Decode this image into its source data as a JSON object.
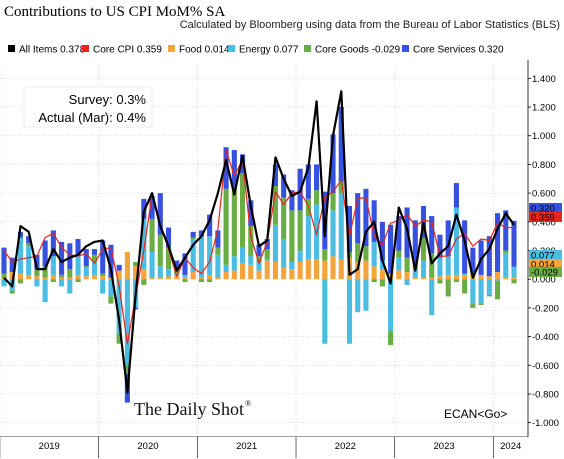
{
  "header": {
    "title": "Contributions to US CPI MoM% SA",
    "subtitle": "Calculated by Bloomberg using data from the Bureau of Labor Statistics (BLS)"
  },
  "annotations": {
    "survey": "Survey:  0.3%",
    "actual": "Actual (Mar):  0.4%",
    "watermark": "The Daily Shot",
    "watermark_mark": "®",
    "command": "ECAN<Go>"
  },
  "legend": [
    {
      "label": "All Items",
      "value": "0.378",
      "color": "#000000"
    },
    {
      "label": "Core CPI",
      "value": "0.359",
      "color": "#e8251b"
    },
    {
      "label": "Food",
      "value": "0.014",
      "color": "#f5a43a"
    },
    {
      "label": "Energy",
      "value": "0.077",
      "color": "#4bbde3"
    },
    {
      "label": "Core Goods",
      "value": "-0.029",
      "color": "#6aad45"
    },
    {
      "label": "Core Services",
      "value": "0.320",
      "color": "#3650e0"
    }
  ],
  "last_value_tags": [
    {
      "text": "0.320",
      "color": "#3650e0",
      "text_color": "#ffffff",
      "value": 0.32
    },
    {
      "text": "0.359",
      "color": "#e8251b",
      "text_color": "#ffffff",
      "value": 0.359
    },
    {
      "text": "0.077",
      "color": "#4bbde3",
      "text_color": "#000000",
      "value": 0.077
    },
    {
      "text": "0.014",
      "color": "#f5a43a",
      "text_color": "#000000",
      "value": 0.014
    },
    {
      "text": "-0.029",
      "color": "#6aad45",
      "text_color": "#000000",
      "value": -0.029
    }
  ],
  "chart_data": {
    "type": "bar",
    "stacked": true,
    "title": "Contributions to US CPI MoM% SA",
    "subtitle": "Calculated by Bloomberg using data from the Bureau of Labor Statistics (BLS)",
    "ylim": [
      -1.1,
      1.5
    ],
    "y_ticks": [
      -1.0,
      -0.8,
      -0.6,
      -0.4,
      -0.2,
      0.0,
      0.2,
      0.4,
      0.6,
      0.8,
      1.0,
      1.2,
      1.4
    ],
    "y_tick_labels": [
      "-1.000",
      "-0.800",
      "-0.600",
      "-0.400",
      "-0.200",
      "0.000",
      "0.200",
      "0.400",
      "0.600",
      "0.800",
      "1.000",
      "1.200",
      "1.400"
    ],
    "x_tick_labels": [
      "2019",
      "2020",
      "2021",
      "2022",
      "2023",
      "2024"
    ],
    "grid": true,
    "legend_position": "top",
    "categories": [
      "2019-01",
      "2019-02",
      "2019-03",
      "2019-04",
      "2019-05",
      "2019-06",
      "2019-07",
      "2019-08",
      "2019-09",
      "2019-10",
      "2019-11",
      "2019-12",
      "2020-01",
      "2020-02",
      "2020-03",
      "2020-04",
      "2020-05",
      "2020-06",
      "2020-07",
      "2020-08",
      "2020-09",
      "2020-10",
      "2020-11",
      "2020-12",
      "2021-01",
      "2021-02",
      "2021-03",
      "2021-04",
      "2021-05",
      "2021-06",
      "2021-07",
      "2021-08",
      "2021-09",
      "2021-10",
      "2021-11",
      "2021-12",
      "2022-01",
      "2022-02",
      "2022-03",
      "2022-04",
      "2022-05",
      "2022-06",
      "2022-07",
      "2022-08",
      "2022-09",
      "2022-10",
      "2022-11",
      "2022-12",
      "2023-01",
      "2023-02",
      "2023-03",
      "2023-04",
      "2023-05",
      "2023-06",
      "2023-07",
      "2023-08",
      "2023-09",
      "2023-10",
      "2023-11",
      "2023-12",
      "2024-01",
      "2024-02",
      "2024-03"
    ],
    "series": [
      {
        "name": "Food",
        "color": "#f5a43a",
        "values": [
          0.01,
          0.05,
          0.04,
          0.03,
          0.02,
          0.01,
          0.03,
          0.01,
          0.01,
          0.03,
          0.02,
          0.03,
          0.02,
          0.01,
          0.06,
          0.19,
          0.09,
          0.07,
          0.01,
          0.01,
          0.02,
          0.03,
          0.01,
          0.05,
          0.01,
          0.03,
          0.01,
          0.05,
          0.06,
          0.11,
          0.1,
          0.06,
          0.13,
          0.12,
          0.08,
          0.07,
          0.12,
          0.14,
          0.14,
          0.13,
          0.16,
          0.14,
          0.15,
          0.12,
          0.13,
          0.09,
          0.07,
          0.04,
          0.06,
          0.05,
          0.01,
          0.01,
          0.01,
          0.02,
          0.03,
          0.03,
          0.03,
          0.04,
          0.03,
          0.02,
          0.05,
          0.01,
          0.01
        ]
      },
      {
        "name": "Energy",
        "color": "#4bbde3",
        "values": [
          -0.05,
          -0.08,
          0.25,
          0.2,
          -0.05,
          -0.16,
          0.13,
          -0.05,
          -0.1,
          0.13,
          0.06,
          0.09,
          -0.1,
          -0.12,
          -0.38,
          -0.6,
          -0.2,
          0.35,
          0.18,
          0.08,
          0.05,
          0.01,
          0.02,
          0.23,
          0.29,
          0.27,
          0.16,
          0.05,
          0.1,
          0.11,
          0.06,
          0.06,
          0.01,
          0.26,
          0.2,
          0.05,
          0.08,
          0.3,
          0.38,
          -0.45,
          0.32,
          0.46,
          -0.45,
          -0.23,
          -0.22,
          0.17,
          0.06,
          -0.36,
          0.09,
          -0.04,
          0.06,
          0.12,
          -0.25,
          0.13,
          0.13,
          0.47,
          0.01,
          -0.17,
          -0.17,
          -0.11,
          -0.01,
          0.17,
          0.077
        ]
      },
      {
        "name": "Core Goods",
        "color": "#6aad45",
        "values": [
          0.03,
          -0.02,
          -0.03,
          0.02,
          0.05,
          0.08,
          -0.02,
          0.02,
          0.06,
          -0.02,
          0.01,
          0.05,
          0.02,
          -0.05,
          -0.07,
          -0.06,
          0.03,
          -0.04,
          0.23,
          0.22,
          0.15,
          0.03,
          -0.02,
          0.01,
          -0.02,
          -0.02,
          0.05,
          0.53,
          0.48,
          0.52,
          0.21,
          0.04,
          0.07,
          0.27,
          0.29,
          0.36,
          0.28,
          0.12,
          0.1,
          0.08,
          0.12,
          0.08,
          0.04,
          0.13,
          0.1,
          -0.02,
          -0.05,
          -0.1,
          0.05,
          0.1,
          0.04,
          0.16,
          0.17,
          -0.03,
          -0.12,
          -0.02,
          -0.1,
          -0.03,
          -0.01,
          -0.01,
          -0.13,
          0.02,
          -0.029
        ]
      },
      {
        "name": "Core Services",
        "color": "#3650e0",
        "values": [
          0.18,
          0.1,
          0.04,
          0.05,
          0.1,
          0.18,
          0.18,
          0.23,
          0.18,
          0.12,
          0.12,
          0.04,
          0.23,
          0.23,
          0.04,
          -0.2,
          -0.01,
          0.14,
          0.16,
          0.29,
          0.14,
          0.06,
          0.15,
          0.04,
          0.04,
          0.15,
          0.12,
          0.29,
          0.26,
          0.13,
          0.18,
          0.08,
          0.07,
          0.15,
          0.16,
          0.14,
          0.29,
          0.24,
          0.18,
          0.4,
          0.41,
          0.52,
          0.32,
          0.35,
          0.4,
          0.29,
          0.27,
          0.34,
          0.24,
          0.35,
          0.3,
          0.22,
          0.26,
          0.16,
          0.25,
          0.17,
          0.37,
          0.18,
          0.24,
          0.28,
          0.41,
          0.28,
          0.32
        ]
      },
      {
        "name": "Core CPI",
        "color": "#e8251b",
        "type": "line",
        "values": [
          0.2,
          0.12,
          0.14,
          0.15,
          0.16,
          0.29,
          0.32,
          0.22,
          0.17,
          0.16,
          0.18,
          0.11,
          0.21,
          0.22,
          -0.05,
          -0.45,
          -0.12,
          0.2,
          0.59,
          0.38,
          0.21,
          0.02,
          0.15,
          0.08,
          0.04,
          0.12,
          0.35,
          0.9,
          0.72,
          0.83,
          0.3,
          0.11,
          0.26,
          0.61,
          0.52,
          0.6,
          0.61,
          0.51,
          0.31,
          0.57,
          0.61,
          0.69,
          0.3,
          0.56,
          0.57,
          0.3,
          0.24,
          0.39,
          0.41,
          0.45,
          0.37,
          0.41,
          0.4,
          0.16,
          0.16,
          0.28,
          0.32,
          0.23,
          0.28,
          0.27,
          0.39,
          0.36,
          0.359
        ]
      },
      {
        "name": "All Items",
        "color": "#000000",
        "type": "line",
        "values": [
          0.01,
          -0.05,
          0.37,
          0.33,
          0.07,
          0.07,
          0.21,
          0.12,
          0.15,
          0.17,
          0.23,
          0.26,
          0.27,
          0.07,
          -0.29,
          -0.79,
          -0.11,
          0.47,
          0.6,
          0.37,
          0.23,
          0.06,
          0.15,
          0.24,
          0.3,
          0.41,
          0.6,
          0.83,
          0.59,
          0.86,
          0.51,
          0.23,
          0.27,
          0.85,
          0.7,
          0.58,
          0.61,
          0.78,
          1.24,
          0.3,
          1.0,
          1.31,
          0.03,
          0.07,
          0.33,
          0.4,
          0.13,
          -0.03,
          0.5,
          0.35,
          0.06,
          0.39,
          0.11,
          0.18,
          0.23,
          0.45,
          0.27,
          0.01,
          0.14,
          0.21,
          0.35,
          0.46,
          0.378
        ]
      }
    ]
  }
}
